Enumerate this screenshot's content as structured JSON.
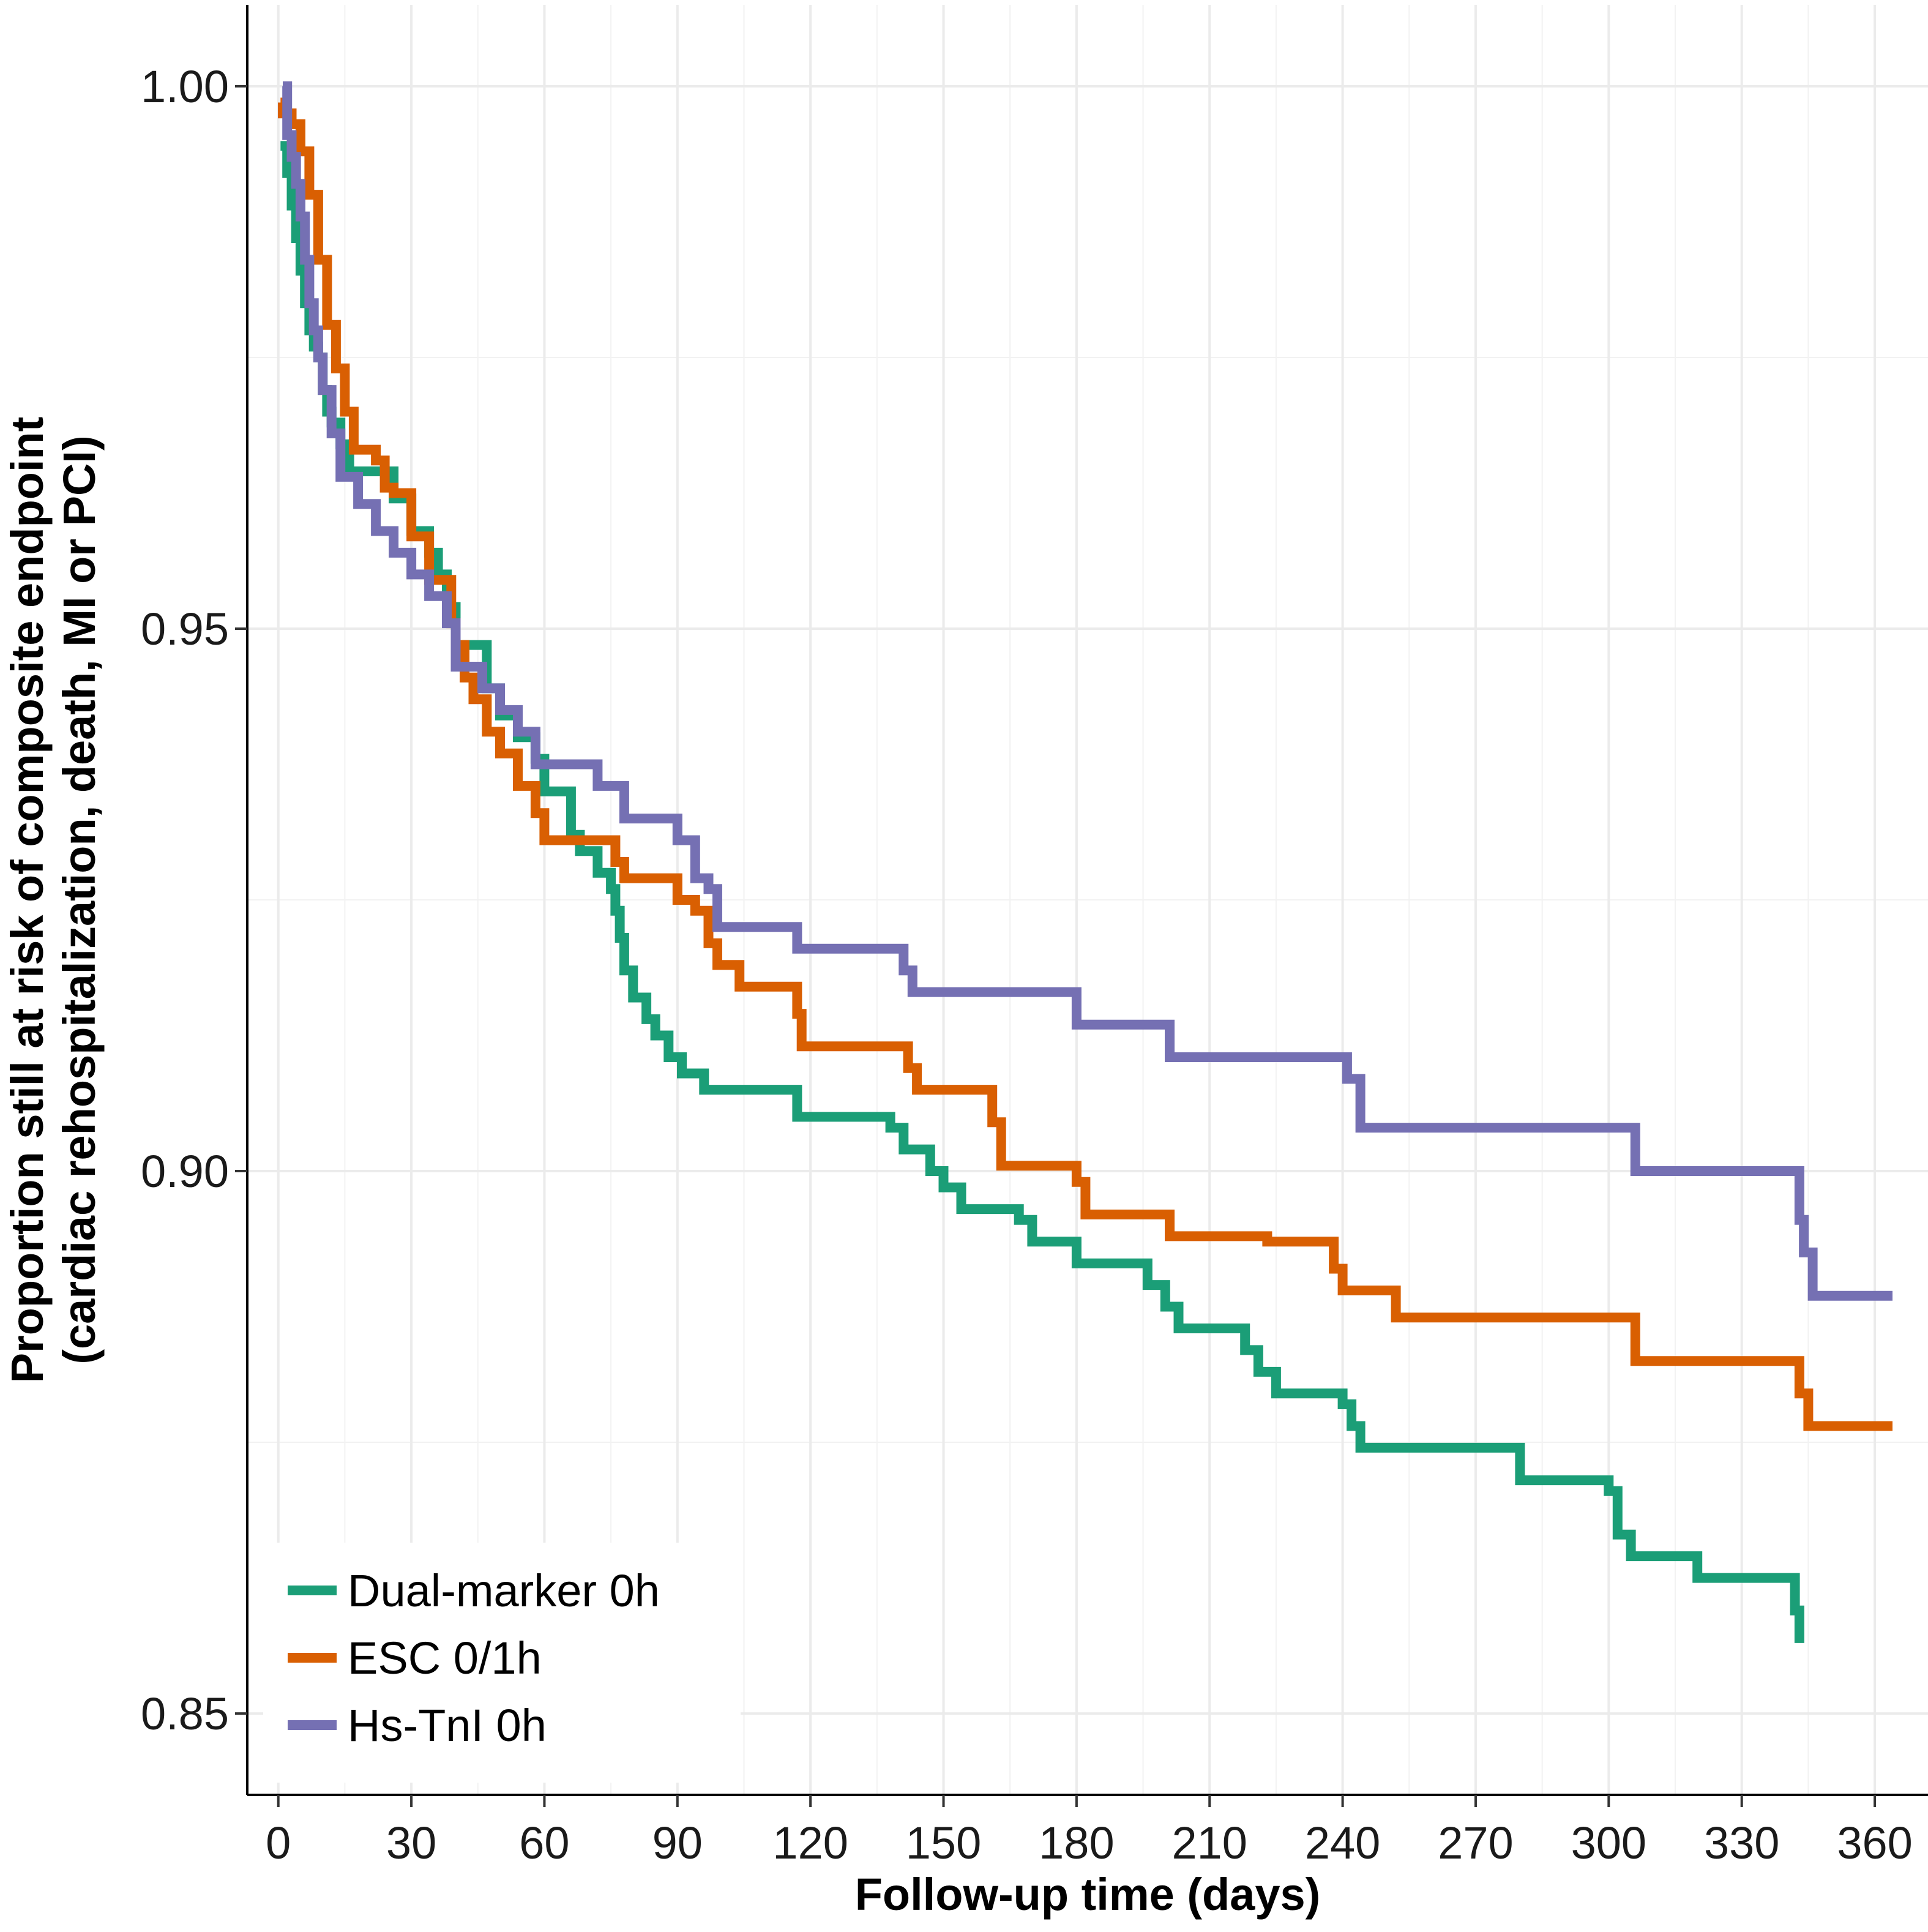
{
  "chart_data": {
    "type": "line",
    "step": true,
    "xlabel": "Follow-up time (days)",
    "ylabel_lines": [
      "Proportion still at risk of composite endpoint",
      "(cardiac rehospitalization, death, MI or PCI)"
    ],
    "xlim": [
      -7,
      372
    ],
    "ylim": [
      0.8425,
      1.0075
    ],
    "x_ticks": [
      0,
      30,
      60,
      90,
      120,
      150,
      180,
      210,
      240,
      270,
      300,
      330,
      360
    ],
    "x_tick_labels": [
      "0",
      "30",
      "60",
      "90",
      "120",
      "150",
      "180",
      "210",
      "240",
      "270",
      "300",
      "330",
      "360"
    ],
    "y_ticks": [
      1.0,
      0.95,
      0.9,
      0.85
    ],
    "y_tick_labels": [
      "1.00",
      "0.95",
      "0.90",
      "0.85"
    ],
    "y_minor_gridlines": [
      0.975,
      0.925,
      0.875
    ],
    "legend_position": "bottom-left",
    "series": [
      {
        "name": "Dual-marker 0h",
        "color": "#1b9e77",
        "points": [
          [
            0.5,
            0.9945
          ],
          [
            2,
            0.992
          ],
          [
            3,
            0.989
          ],
          [
            4,
            0.986
          ],
          [
            5,
            0.983
          ],
          [
            6,
            0.98
          ],
          [
            7,
            0.9775
          ],
          [
            8,
            0.976
          ],
          [
            9,
            0.975
          ],
          [
            10,
            0.972
          ],
          [
            11,
            0.97
          ],
          [
            12,
            0.969
          ],
          [
            14,
            0.967
          ],
          [
            16,
            0.9645
          ],
          [
            22,
            0.9645
          ],
          [
            26,
            0.962
          ],
          [
            30,
            0.959
          ],
          [
            34,
            0.957
          ],
          [
            36,
            0.955
          ],
          [
            38,
            0.952
          ],
          [
            40,
            0.9485
          ],
          [
            44,
            0.9485
          ],
          [
            47,
            0.9445
          ],
          [
            50,
            0.942
          ],
          [
            54,
            0.94
          ],
          [
            58,
            0.938
          ],
          [
            60,
            0.935
          ],
          [
            63,
            0.935
          ],
          [
            66,
            0.931
          ],
          [
            68,
            0.9295
          ],
          [
            72,
            0.9275
          ],
          [
            75,
            0.926
          ],
          [
            76,
            0.924
          ],
          [
            77,
            0.9215
          ],
          [
            78,
            0.9185
          ],
          [
            80,
            0.916
          ],
          [
            83,
            0.914
          ],
          [
            85,
            0.9125
          ],
          [
            88,
            0.9105
          ],
          [
            91,
            0.909
          ],
          [
            96,
            0.9075
          ],
          [
            117,
            0.905
          ],
          [
            138,
            0.904
          ],
          [
            141,
            0.902
          ],
          [
            147,
            0.9
          ],
          [
            150,
            0.8985
          ],
          [
            154,
            0.8965
          ],
          [
            167,
            0.8955
          ],
          [
            170,
            0.8935
          ],
          [
            180,
            0.8915
          ],
          [
            196,
            0.8895
          ],
          [
            200,
            0.8875
          ],
          [
            203,
            0.8855
          ],
          [
            218,
            0.8835
          ],
          [
            221,
            0.8815
          ],
          [
            225,
            0.8795
          ],
          [
            240,
            0.8785
          ],
          [
            242,
            0.8765
          ],
          [
            244,
            0.8745
          ],
          [
            280,
            0.8715
          ],
          [
            300,
            0.8705
          ],
          [
            302,
            0.8665
          ],
          [
            305,
            0.8645
          ],
          [
            320,
            0.8625
          ],
          [
            342,
            0.8595
          ],
          [
            343,
            0.8565
          ]
        ]
      },
      {
        "name": "ESC 0/1h",
        "color": "#d95f02",
        "points": [
          [
            0.5,
            0.9985
          ],
          [
            1,
            0.9975
          ],
          [
            3,
            0.9965
          ],
          [
            5,
            0.994
          ],
          [
            7,
            0.99
          ],
          [
            9,
            0.984
          ],
          [
            11,
            0.978
          ],
          [
            13,
            0.974
          ],
          [
            15,
            0.97
          ],
          [
            17,
            0.9665
          ],
          [
            22,
            0.9655
          ],
          [
            24,
            0.963
          ],
          [
            26,
            0.9625
          ],
          [
            30,
            0.9585
          ],
          [
            34,
            0.9545
          ],
          [
            38,
            0.9545
          ],
          [
            39,
            0.9505
          ],
          [
            40,
            0.9485
          ],
          [
            42,
            0.9455
          ],
          [
            44,
            0.9435
          ],
          [
            47,
            0.9405
          ],
          [
            50,
            0.9385
          ],
          [
            54,
            0.9355
          ],
          [
            58,
            0.933
          ],
          [
            60,
            0.9305
          ],
          [
            76,
            0.9285
          ],
          [
            78,
            0.927
          ],
          [
            90,
            0.925
          ],
          [
            94,
            0.924
          ],
          [
            97,
            0.921
          ],
          [
            99,
            0.919
          ],
          [
            104,
            0.917
          ],
          [
            117,
            0.9145
          ],
          [
            118,
            0.9115
          ],
          [
            142,
            0.9095
          ],
          [
            144,
            0.9075
          ],
          [
            161,
            0.9045
          ],
          [
            163,
            0.9005
          ],
          [
            180,
            0.899
          ],
          [
            182,
            0.896
          ],
          [
            201,
            0.894
          ],
          [
            223,
            0.8935
          ],
          [
            238,
            0.891
          ],
          [
            240,
            0.889
          ],
          [
            252,
            0.8865
          ],
          [
            268,
            0.8865
          ],
          [
            306,
            0.8825
          ],
          [
            343,
            0.8795
          ],
          [
            345,
            0.8765
          ],
          [
            364,
            0.8765
          ]
        ]
      },
      {
        "name": "Hs-TnI 0h",
        "color": "#7570b3",
        "points": [
          [
            1,
            1.0
          ],
          [
            2,
            0.9955
          ],
          [
            3,
            0.9935
          ],
          [
            4,
            0.991
          ],
          [
            5,
            0.988
          ],
          [
            6,
            0.984
          ],
          [
            7,
            0.98
          ],
          [
            8,
            0.9775
          ],
          [
            9,
            0.975
          ],
          [
            10,
            0.972
          ],
          [
            12,
            0.968
          ],
          [
            14,
            0.964
          ],
          [
            18,
            0.9615
          ],
          [
            22,
            0.959
          ],
          [
            26,
            0.957
          ],
          [
            30,
            0.955
          ],
          [
            34,
            0.953
          ],
          [
            38,
            0.9505
          ],
          [
            40,
            0.9465
          ],
          [
            46,
            0.9445
          ],
          [
            50,
            0.9425
          ],
          [
            54,
            0.9405
          ],
          [
            58,
            0.9375
          ],
          [
            72,
            0.9355
          ],
          [
            78,
            0.9325
          ],
          [
            90,
            0.9305
          ],
          [
            94,
            0.927
          ],
          [
            97,
            0.926
          ],
          [
            99,
            0.9225
          ],
          [
            117,
            0.9205
          ],
          [
            141,
            0.9185
          ],
          [
            143,
            0.9165
          ],
          [
            180,
            0.9135
          ],
          [
            201,
            0.9105
          ],
          [
            241,
            0.9085
          ],
          [
            244,
            0.904
          ],
          [
            306,
            0.9
          ],
          [
            343,
            0.8955
          ],
          [
            344,
            0.8925
          ],
          [
            346,
            0.8885
          ],
          [
            364,
            0.8885
          ]
        ]
      }
    ]
  }
}
